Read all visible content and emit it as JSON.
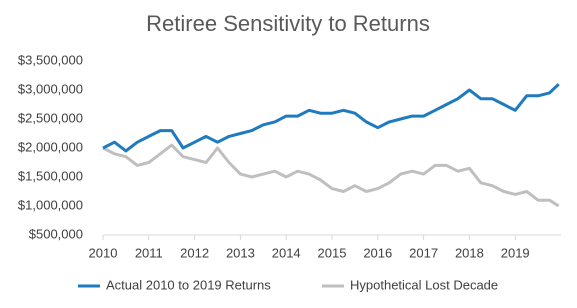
{
  "chart_data": {
    "type": "line",
    "title": "Retiree Sensitivity to Returns",
    "x": [
      2010,
      2010.25,
      2010.5,
      2010.75,
      2011,
      2011.25,
      2011.5,
      2011.75,
      2012,
      2012.25,
      2012.5,
      2012.75,
      2013,
      2013.25,
      2013.5,
      2013.75,
      2014,
      2014.25,
      2014.5,
      2014.75,
      2015,
      2015.25,
      2015.5,
      2015.75,
      2016,
      2016.25,
      2016.5,
      2016.75,
      2017,
      2017.25,
      2017.5,
      2017.75,
      2018,
      2018.25,
      2018.5,
      2018.75,
      2019,
      2019.25,
      2019.5,
      2019.75,
      2019.95
    ],
    "series": [
      {
        "name": "Actual 2010 to 2019 Returns",
        "color": "#1f7bbf",
        "values": [
          2000000,
          2100000,
          1950000,
          2100000,
          2200000,
          2300000,
          2300000,
          2000000,
          2100000,
          2200000,
          2100000,
          2200000,
          2250000,
          2300000,
          2400000,
          2450000,
          2550000,
          2550000,
          2650000,
          2600000,
          2600000,
          2650000,
          2600000,
          2450000,
          2350000,
          2450000,
          2500000,
          2550000,
          2550000,
          2650000,
          2750000,
          2850000,
          3000000,
          2850000,
          2850000,
          2750000,
          2650000,
          2900000,
          2900000,
          2950000,
          3100000
        ]
      },
      {
        "name": "Hypothetical Lost Decade",
        "color": "#bfbfbf",
        "values": [
          2000000,
          1900000,
          1850000,
          1700000,
          1750000,
          1900000,
          2050000,
          1850000,
          1800000,
          1750000,
          2000000,
          1750000,
          1550000,
          1500000,
          1550000,
          1600000,
          1500000,
          1600000,
          1550000,
          1450000,
          1300000,
          1250000,
          1350000,
          1250000,
          1300000,
          1400000,
          1550000,
          1600000,
          1550000,
          1700000,
          1700000,
          1600000,
          1650000,
          1400000,
          1350000,
          1250000,
          1200000,
          1250000,
          1100000,
          1100000,
          1000000
        ]
      }
    ],
    "xlim": [
      2010,
      2020
    ],
    "xticks": [
      2010,
      2011,
      2012,
      2013,
      2014,
      2015,
      2016,
      2017,
      2018,
      2019
    ],
    "ylim": [
      500000,
      3500000
    ],
    "yticks": [
      {
        "value": 500000,
        "label": "$500,000"
      },
      {
        "value": 1000000,
        "label": "$1,000,000"
      },
      {
        "value": 1500000,
        "label": "$1,500,000"
      },
      {
        "value": 2000000,
        "label": "$2,000,000"
      },
      {
        "value": 2500000,
        "label": "$2,500,000"
      },
      {
        "value": 3000000,
        "label": "$3,000,000"
      },
      {
        "value": 3500000,
        "label": "$3,500,000"
      }
    ],
    "legend": "bottom"
  }
}
